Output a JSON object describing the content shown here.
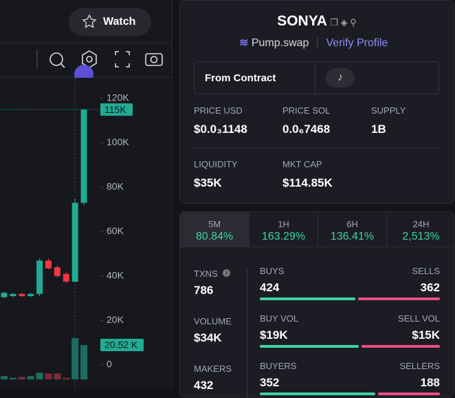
{
  "header": {
    "watch": "Watch"
  },
  "token": {
    "name": "SONYA",
    "dex": "Pump.swap",
    "verify": "Verify Profile",
    "contract": "From Contract"
  },
  "stats": [
    {
      "label": "PRICE USD",
      "value": "$0.0₃1148"
    },
    {
      "label": "PRICE SOL",
      "value": "0.0₆7468"
    },
    {
      "label": "SUPPLY",
      "value": "1B"
    },
    {
      "label": "LIQUIDITY",
      "value": "$35K"
    },
    {
      "label": "MKT CAP",
      "value": "$114.85K"
    }
  ],
  "changes": [
    {
      "period": "5M",
      "value": "80.84%"
    },
    {
      "period": "1H",
      "value": "163.29%"
    },
    {
      "period": "6H",
      "value": "136.41%"
    },
    {
      "period": "24H",
      "value": "2,513%"
    }
  ],
  "activity": {
    "txns": {
      "label": "TXNS",
      "value": 786
    },
    "volume": {
      "label": "VOLUME",
      "value": "$34K"
    },
    "makers": {
      "label": "MAKERS",
      "value": 432
    },
    "rows": [
      {
        "left_label": "BUYS",
        "left": {
          "value": 424,
          "label": "424"
        },
        "right_label": "SELLS",
        "right": {
          "value": 362,
          "label": "362"
        }
      },
      {
        "left_label": "BUY VOL",
        "left": {
          "value": 19000,
          "label": "$19K"
        },
        "right_label": "SELL VOL",
        "right": {
          "value": 15000,
          "label": "$15K"
        }
      },
      {
        "left_label": "BUYERS",
        "left": {
          "value": 352,
          "label": "352"
        },
        "right_label": "SELLERS",
        "right": {
          "value": 188,
          "label": "188"
        }
      }
    ]
  },
  "chart": {
    "yticks": [
      {
        "value": 120,
        "label": "120K"
      },
      {
        "value": 100,
        "label": "100K"
      },
      {
        "value": 80,
        "label": "80K"
      },
      {
        "value": 60,
        "label": "60K"
      },
      {
        "value": 40,
        "label": "40K"
      },
      {
        "value": 20,
        "label": "20K"
      },
      0
    ],
    "price_label": {
      "value": 115,
      "label": "115K"
    },
    "volume_label": {
      "value": 20.52,
      "label": "20.52 K"
    },
    "candles": [
      {
        "open": 30.5,
        "high": 33,
        "low": 30,
        "close": 32.5
      },
      {
        "open": 31,
        "high": 32.5,
        "low": 30.5,
        "close": 32
      },
      {
        "open": 32,
        "high": 32.5,
        "low": 30.5,
        "close": 31
      },
      {
        "open": 31,
        "high": 32.5,
        "low": 30.5,
        "close": 32
      },
      {
        "open": 32,
        "high": 48,
        "low": 31,
        "close": 47
      },
      {
        "open": 47,
        "high": 48,
        "low": 43,
        "close": 43.5
      },
      {
        "open": 44,
        "high": 45,
        "low": 39.5,
        "close": 40
      },
      {
        "open": 41,
        "high": 42,
        "low": 37,
        "close": 37.5
      },
      {
        "open": 37.5,
        "high": 75,
        "low": 37,
        "close": 73
      },
      {
        "open": 73,
        "high": 115,
        "low": 72,
        "close": 115
      }
    ],
    "volumes": [
      2,
      1,
      1.5,
      2,
      4,
      3.5,
      3.5,
      1,
      24.6,
      20.52
    ]
  }
}
